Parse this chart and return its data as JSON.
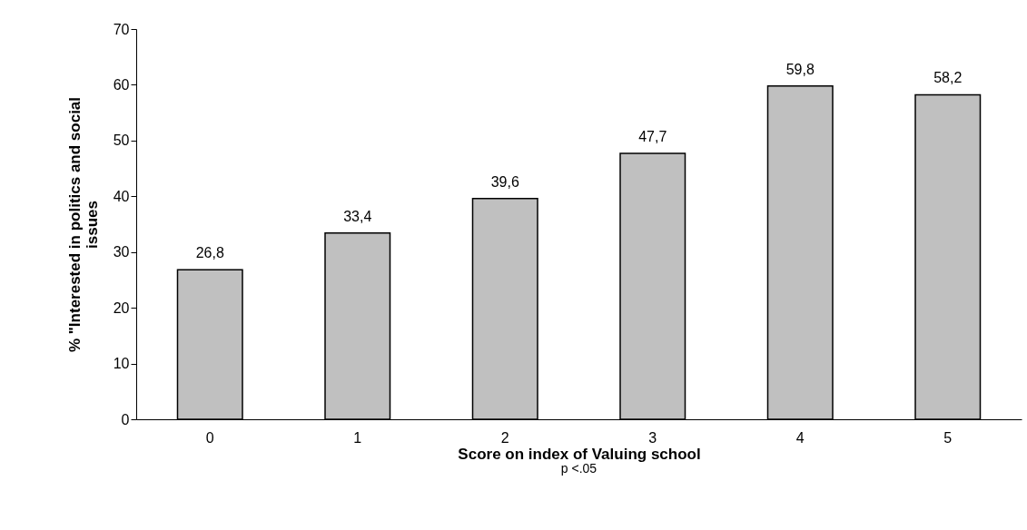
{
  "chart_data": {
    "type": "bar",
    "xlabel": "Score on index of Valuing school",
    "ylabel": "% \"Interested in politics and social issues",
    "annotations": [
      "p <.05"
    ],
    "categories": [
      "0",
      "1",
      "2",
      "3",
      "4",
      "5"
    ],
    "values": [
      26.8,
      33.4,
      39.6,
      47.7,
      59.8,
      58.2
    ],
    "value_labels": [
      "26,8",
      "33,4",
      "39,6",
      "47,7",
      "59,8",
      "58,2"
    ],
    "color": "#c0c0c0",
    "ylim": [
      0,
      70
    ],
    "yticks": [
      0,
      10,
      20,
      30,
      40,
      50,
      60,
      70
    ],
    "grid": false
  }
}
